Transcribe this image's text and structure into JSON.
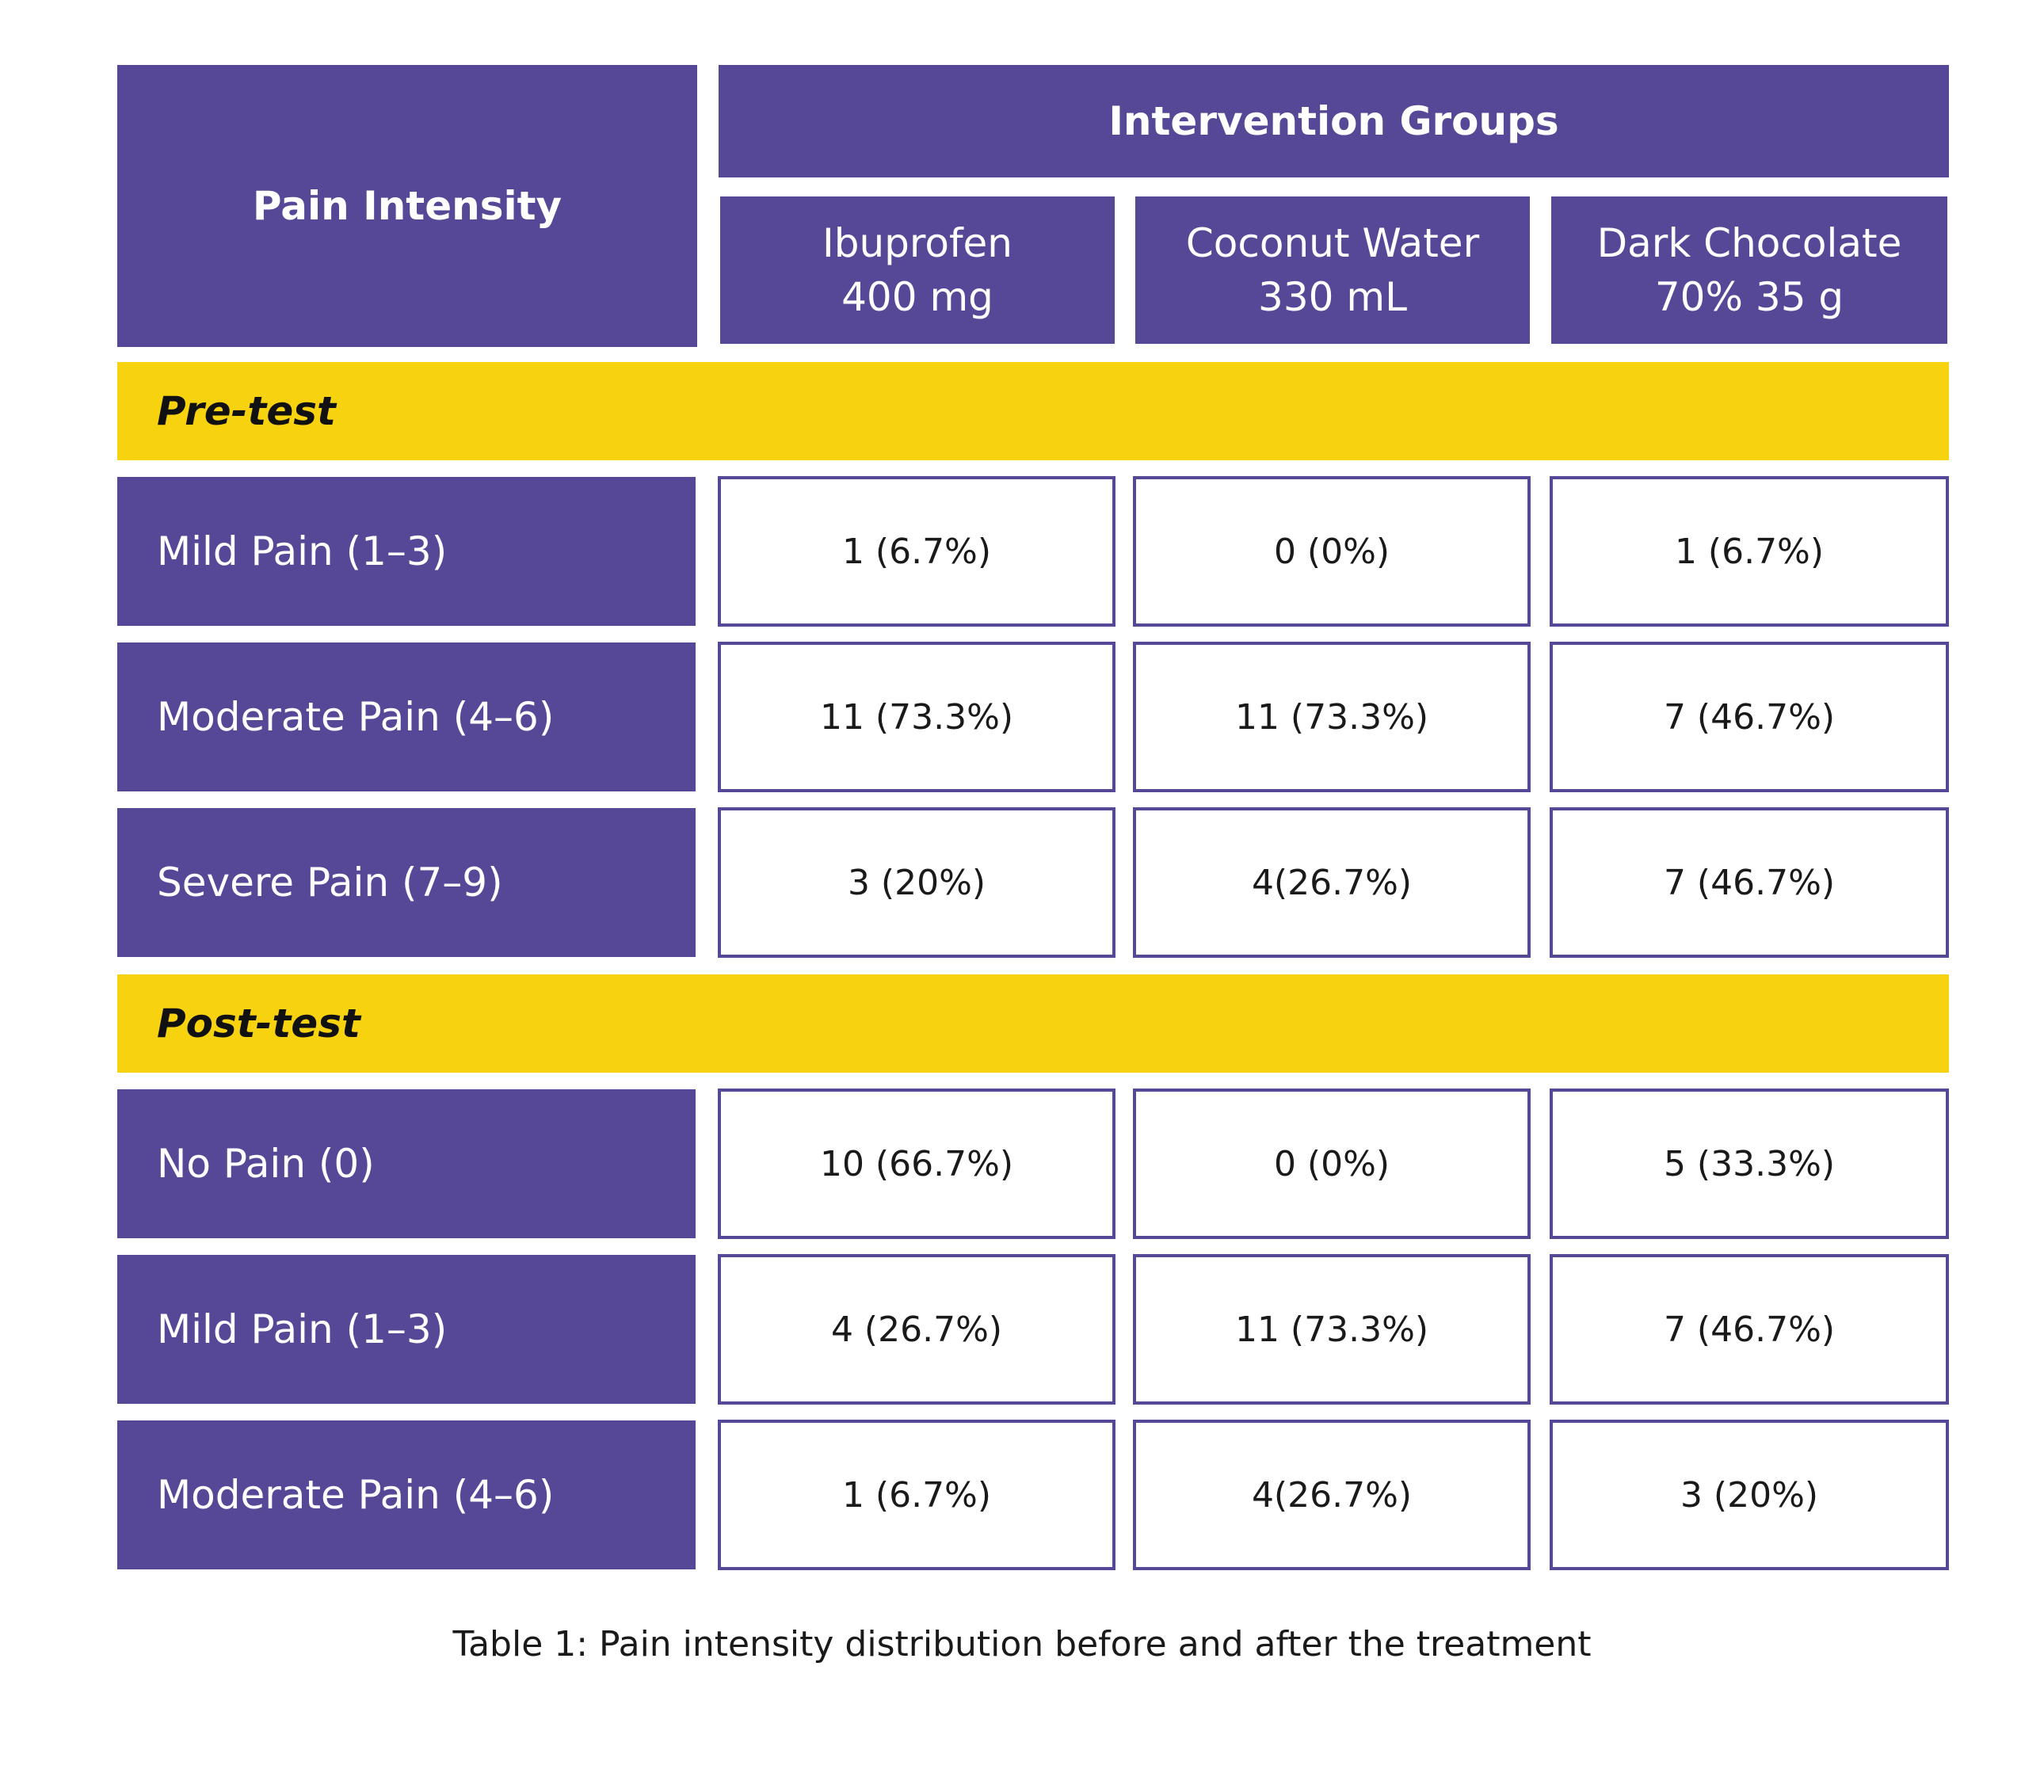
{
  "header": {
    "row_header": "Pain Intensity",
    "group_header": "Intervention Groups",
    "columns": [
      {
        "line1": "Ibuprofen",
        "line2": "400 mg"
      },
      {
        "line1": "Coconut Water",
        "line2": "330 mL"
      },
      {
        "line1": "Dark Chocolate",
        "line2": "70% 35 g"
      }
    ]
  },
  "pretest": {
    "label": "Pre-test",
    "rows": [
      {
        "label": "Mild Pain (1–3)",
        "values": [
          "1 (6.7%)",
          "0 (0%)",
          "1 (6.7%)"
        ]
      },
      {
        "label": "Moderate Pain (4–6)",
        "values": [
          "11 (73.3%)",
          "11 (73.3%)",
          "7 (46.7%)"
        ]
      },
      {
        "label": "Severe Pain (7–9)",
        "values": [
          "3 (20%)",
          "4(26.7%)",
          "7 (46.7%)"
        ]
      }
    ]
  },
  "posttest": {
    "label": "Post-test",
    "rows": [
      {
        "label": "No Pain (0)",
        "values": [
          "10 (66.7%)",
          "0 (0%)",
          "5 (33.3%)"
        ]
      },
      {
        "label": "Mild Pain (1–3)",
        "values": [
          "4 (26.7%)",
          "11 (73.3%)",
          "7 (46.7%)"
        ]
      },
      {
        "label": "Moderate Pain (4–6)",
        "values": [
          "1 (6.7%)",
          "4(26.7%)",
          "3 (20%)"
        ]
      }
    ]
  },
  "caption": "Table 1: Pain intensity distribution before and after the treatment",
  "colors": {
    "purple": "#574897",
    "yellow": "#f7d20f",
    "white": "#ffffff"
  }
}
